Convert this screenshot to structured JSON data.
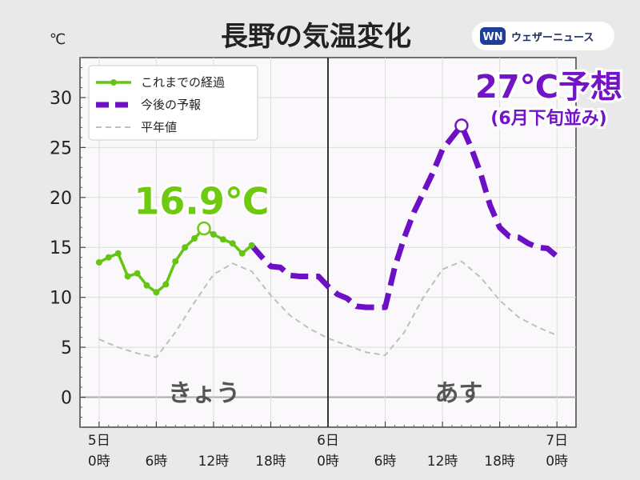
{
  "chart_data": {
    "type": "line",
    "title": "長野の気温変化",
    "unit": "℃",
    "ylim": [
      -3,
      34
    ],
    "yticks": [
      0,
      5,
      10,
      15,
      20,
      25,
      30
    ],
    "xlim": [
      -2,
      50
    ],
    "xticks": [
      {
        "x": 0,
        "line1": "5日",
        "line2": "0時"
      },
      {
        "x": 6,
        "line1": "",
        "line2": "6時"
      },
      {
        "x": 12,
        "line1": "",
        "line2": "12時"
      },
      {
        "x": 18,
        "line1": "",
        "line2": "18時"
      },
      {
        "x": 24,
        "line1": "6日",
        "line2": "0時"
      },
      {
        "x": 30,
        "line1": "",
        "line2": "6時"
      },
      {
        "x": 36,
        "line1": "",
        "line2": "12時"
      },
      {
        "x": 42,
        "line1": "",
        "line2": "18時"
      },
      {
        "x": 48,
        "line1": "7日",
        "line2": "0時"
      }
    ],
    "grid": true,
    "legend_position": "top-left",
    "series": [
      {
        "name": "これまでの経過",
        "color": "#66c414",
        "style": "solid-markers",
        "x": [
          0,
          1,
          2,
          3,
          4,
          5,
          6,
          7,
          8,
          9,
          10,
          11,
          12,
          13,
          14,
          15,
          16
        ],
        "y": [
          13.5,
          14.0,
          14.4,
          12.1,
          12.4,
          11.2,
          10.5,
          11.3,
          13.6,
          15.0,
          15.9,
          16.9,
          16.3,
          15.8,
          15.4,
          14.4,
          15.2
        ]
      },
      {
        "name": "今後の予報",
        "color": "#6d0fc4",
        "style": "dashed",
        "x": [
          16,
          17,
          18,
          19,
          20,
          21,
          22,
          23,
          24,
          25,
          26,
          27,
          28,
          29,
          30,
          31,
          32,
          33,
          34,
          35,
          36,
          37,
          38,
          39,
          40,
          41,
          42,
          43,
          44,
          45,
          46,
          47,
          48
        ],
        "y": [
          15.2,
          14.1,
          13.1,
          13.0,
          12.2,
          12.1,
          12.1,
          12.1,
          11.1,
          10.3,
          9.9,
          9.1,
          9.0,
          9.0,
          9.0,
          13.0,
          16.0,
          18.5,
          20.5,
          22.5,
          24.8,
          26.0,
          27.2,
          25.0,
          22.4,
          19.2,
          17.0,
          16.1,
          16.0,
          15.4,
          15.0,
          14.9,
          14.1
        ]
      },
      {
        "name": "平年値",
        "color": "#bfbfbf",
        "style": "dashed-thin",
        "x": [
          0,
          2,
          4,
          6,
          8,
          10,
          12,
          14,
          16,
          18,
          20,
          22,
          24,
          26,
          28,
          30,
          32,
          34,
          36,
          38,
          40,
          42,
          44,
          46,
          48
        ],
        "y": [
          5.8,
          5.0,
          4.4,
          4.0,
          6.5,
          9.5,
          12.3,
          13.4,
          12.6,
          10.2,
          8.2,
          6.9,
          5.9,
          5.2,
          4.5,
          4.2,
          6.5,
          10.0,
          12.8,
          13.6,
          12.0,
          9.7,
          8.0,
          7.0,
          6.2
        ]
      }
    ],
    "day_labels": [
      {
        "text": "きょう",
        "x": 11
      },
      {
        "text": "あす",
        "x": 37.7
      }
    ],
    "annotations": [
      {
        "text": "16.9℃",
        "x": 11,
        "y": 16.9,
        "color": "#6ec90f"
      },
      {
        "text": "27℃予想",
        "subtext": "(6月下旬並み)",
        "x": 38,
        "y": 27.2,
        "color": "#7414c8"
      }
    ],
    "divider_x": 24
  },
  "brand": {
    "logo": "WN",
    "name": "ウェザーニュース"
  }
}
